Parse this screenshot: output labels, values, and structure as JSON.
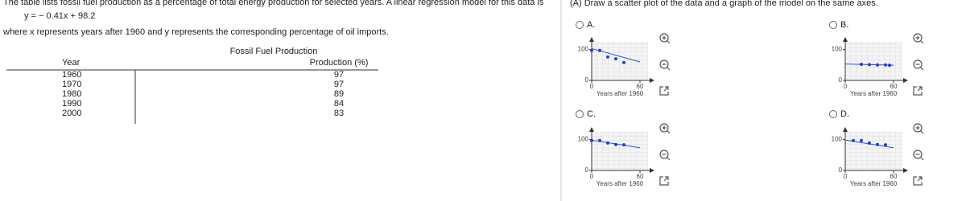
{
  "problem": {
    "intro": "The table lists fossil fuel production as a percentage of total energy production for selected years. A linear regression model for this data is",
    "model": "y = − 0.41x + 98.2",
    "definition": "where x represents years after 1960 and y represents the corresponding percentage of oil imports."
  },
  "table": {
    "caption": "Fossil Fuel Production",
    "headers": [
      "Year",
      "Production (%)"
    ],
    "rows": [
      [
        1960,
        97
      ],
      [
        1970,
        97
      ],
      [
        1980,
        89
      ],
      [
        1990,
        84
      ],
      [
        2000,
        83
      ]
    ]
  },
  "question": "(A) Draw a scatter plot of the data and a graph of the model on the same axes.",
  "options": [
    {
      "label": "A.",
      "xlim": [
        0,
        70
      ],
      "ylim": [
        0,
        125
      ],
      "xticks": [
        0,
        60
      ],
      "yticks": [
        0,
        100
      ],
      "xlabel": "Years after 1960",
      "points": [
        [
          0,
          97
        ],
        [
          10,
          97
        ],
        [
          20,
          76
        ],
        [
          30,
          70
        ],
        [
          40,
          58
        ]
      ],
      "line": [
        [
          0,
          103
        ],
        [
          60,
          60
        ]
      ]
    },
    {
      "label": "B.",
      "xlim": [
        0,
        70
      ],
      "ylim": [
        0,
        125
      ],
      "xticks": [
        0,
        60
      ],
      "yticks": [
        0,
        100
      ],
      "xlabel": "Years after 1960",
      "points": [
        [
          20,
          52
        ],
        [
          30,
          51
        ],
        [
          40,
          50
        ],
        [
          50,
          50
        ],
        [
          55,
          49
        ]
      ],
      "line": [
        [
          0,
          53
        ],
        [
          60,
          49
        ]
      ]
    },
    {
      "label": "C.",
      "xlim": [
        0,
        70
      ],
      "ylim": [
        0,
        125
      ],
      "xticks": [
        0,
        60
      ],
      "yticks": [
        0,
        100
      ],
      "xlabel": "Years after 1960",
      "points": [
        [
          0,
          97
        ],
        [
          10,
          97
        ],
        [
          20,
          89
        ],
        [
          30,
          84
        ],
        [
          40,
          83
        ]
      ],
      "line": [
        [
          0,
          98.2
        ],
        [
          60,
          73.6
        ]
      ]
    },
    {
      "label": "D.",
      "xlim": [
        0,
        70
      ],
      "ylim": [
        0,
        125
      ],
      "xticks": [
        0,
        60
      ],
      "yticks": [
        0,
        100
      ],
      "xlabel": "Years after 1960",
      "points": [
        [
          10,
          97
        ],
        [
          20,
          97
        ],
        [
          30,
          89
        ],
        [
          40,
          84
        ],
        [
          50,
          83
        ]
      ],
      "line": [
        [
          0,
          98.2
        ],
        [
          60,
          73.6
        ]
      ]
    }
  ]
}
